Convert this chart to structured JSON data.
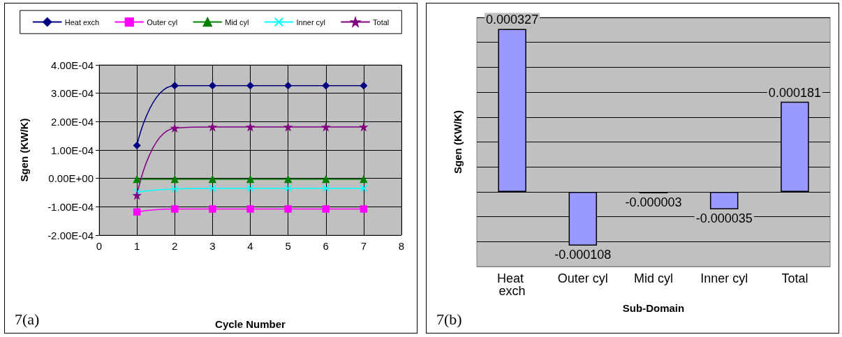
{
  "chart_data": [
    {
      "type": "line",
      "xlabel": "Cycle Number",
      "ylabel": "Sgen (KW/K)",
      "x": [
        1,
        2,
        3,
        4,
        5,
        6,
        7
      ],
      "series": [
        {
          "name": "Heat exch",
          "color": "#000080",
          "marker": "diamond",
          "values": [
            0.000116,
            0.000327,
            0.000327,
            0.000327,
            0.000327,
            0.000327,
            0.000327
          ]
        },
        {
          "name": "Outer cyl",
          "color": "#ff00ff",
          "marker": "square",
          "values": [
            -0.000118,
            -0.000108,
            -0.000108,
            -0.000108,
            -0.000108,
            -0.000108,
            -0.000108
          ]
        },
        {
          "name": "Mid cyl",
          "color": "#008000",
          "marker": "triangle",
          "values": [
            -3e-06,
            -3e-06,
            -3e-06,
            -3e-06,
            -3e-06,
            -3e-06,
            -3e-06
          ]
        },
        {
          "name": "Inner cyl",
          "color": "#00ffff",
          "marker": "cross",
          "values": [
            -4.8e-05,
            -3.7e-05,
            -3.5e-05,
            -3.5e-05,
            -3.5e-05,
            -3.5e-05,
            -3.5e-05
          ]
        },
        {
          "name": "Total",
          "color": "#800080",
          "marker": "star",
          "values": [
            -6e-05,
            0.000177,
            0.000181,
            0.000181,
            0.000181,
            0.000181,
            0.000181
          ]
        }
      ],
      "xlim": [
        0,
        8
      ],
      "xticks": [
        0,
        1,
        2,
        3,
        4,
        5,
        6,
        7,
        8
      ],
      "ylim": [
        -0.0002,
        0.0004
      ],
      "yticks": [
        {
          "value": -0.0002,
          "label": "-2.00E-04"
        },
        {
          "value": -0.0001,
          "label": "-1.00E-04"
        },
        {
          "value": 0,
          "label": "0.00E+00"
        },
        {
          "value": 0.0001,
          "label": "1.00E-04"
        },
        {
          "value": 0.0002,
          "label": "2.00E-04"
        },
        {
          "value": 0.0003,
          "label": "3.00E-04"
        },
        {
          "value": 0.0004,
          "label": "4.00E-04"
        }
      ],
      "grid": true,
      "legend": "top",
      "line_style": "solid",
      "annotations": [
        "7(a)"
      ]
    },
    {
      "type": "bar",
      "xlabel": "Sub-Domain",
      "ylabel": "Sgen (KW/K)",
      "categories": [
        "Heat exch",
        "Outer cyl",
        "Mid cyl",
        "Inner cyl",
        "Total"
      ],
      "values": [
        0.000327,
        -0.000108,
        -3e-06,
        -3.5e-05,
        0.000181
      ],
      "value_labels": [
        "0.000327",
        "-0.000108",
        "-0.000003",
        "-0.000035",
        "0.000181"
      ],
      "color": "#9999ff",
      "ylim": [
        -0.00015,
        0.00035
      ],
      "yticks": [
        {
          "value": -0.00015,
          "label": null
        },
        {
          "value": -0.0001,
          "label": null
        },
        {
          "value": -5e-05,
          "label": null
        },
        {
          "value": 0,
          "label": null
        },
        {
          "value": 5e-05,
          "label": null
        },
        {
          "value": 0.0001,
          "label": null
        },
        {
          "value": 0.00015,
          "label": null
        },
        {
          "value": 0.0002,
          "label": null
        },
        {
          "value": 0.00025,
          "label": null
        },
        {
          "value": 0.0003,
          "label": null
        },
        {
          "value": 0.00035,
          "label": null
        }
      ],
      "grid": "y",
      "tick_labels": "x",
      "legend": false,
      "annotations": [
        "7(b)"
      ]
    }
  ]
}
